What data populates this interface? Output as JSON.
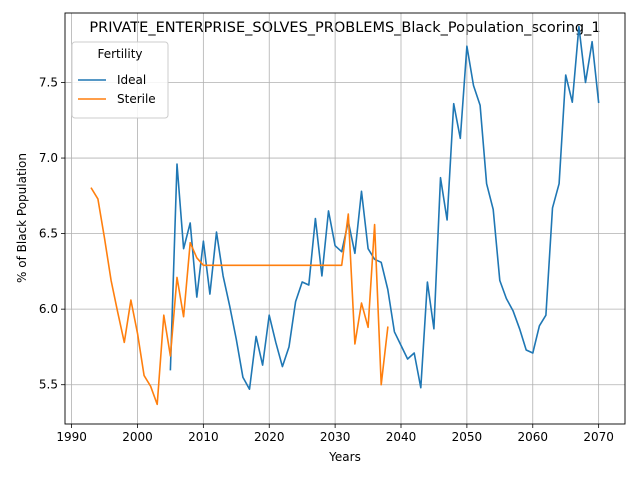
{
  "chart_data": {
    "type": "line",
    "title": "PRIVATE_ENTERPRISE_SOLVES_PROBLEMS_Black_Population_scoring_1",
    "xlabel": "Years",
    "ylabel": "% of Black Population",
    "xlim": [
      1989,
      2074
    ],
    "ylim": [
      5.24,
      7.96
    ],
    "xticks": [
      1990,
      2000,
      2010,
      2020,
      2030,
      2040,
      2050,
      2060,
      2070
    ],
    "yticks": [
      5.5,
      6.0,
      6.5,
      7.0,
      7.5
    ],
    "ytick_labels": [
      "5.5",
      "6.0",
      "6.5",
      "7.0",
      "7.5"
    ],
    "grid": true,
    "legend": {
      "title": "Fertility",
      "position": "top-left"
    },
    "series": [
      {
        "name": "Ideal",
        "color": "#1f77b4",
        "x": [
          2005,
          2006,
          2007,
          2008,
          2009,
          2010,
          2011,
          2012,
          2013,
          2014,
          2015,
          2016,
          2017,
          2018,
          2019,
          2020,
          2021,
          2022,
          2023,
          2024,
          2025,
          2026,
          2027,
          2028,
          2029,
          2030,
          2031,
          2032,
          2033,
          2034,
          2035,
          2036,
          2037,
          2038,
          2039,
          2040,
          2041,
          2042,
          2043,
          2044,
          2045,
          2046,
          2047,
          2048,
          2049,
          2050,
          2051,
          2052,
          2053,
          2054,
          2055,
          2056,
          2057,
          2058,
          2059,
          2060,
          2061,
          2062,
          2063,
          2064,
          2065,
          2066,
          2067,
          2068,
          2069,
          2070
        ],
        "values": [
          5.6,
          6.96,
          6.4,
          6.57,
          6.08,
          6.45,
          6.1,
          6.51,
          6.22,
          6.02,
          5.8,
          5.55,
          5.47,
          5.82,
          5.63,
          5.96,
          5.78,
          5.62,
          5.75,
          6.05,
          6.18,
          6.16,
          6.6,
          6.22,
          6.65,
          6.42,
          6.38,
          6.58,
          6.37,
          6.78,
          6.4,
          6.33,
          6.31,
          6.13,
          5.85,
          5.76,
          5.67,
          5.71,
          5.48,
          6.18,
          5.87,
          6.87,
          6.59,
          7.36,
          7.13,
          7.74,
          7.48,
          7.35,
          6.83,
          6.66,
          6.19,
          6.07,
          5.99,
          5.87,
          5.73,
          5.71,
          5.89,
          5.96,
          6.67,
          6.83,
          7.55,
          7.37,
          7.87,
          7.5,
          7.77,
          7.37
        ]
      },
      {
        "name": "Sterile",
        "color": "#ff7f0e",
        "x": [
          1993,
          1994,
          1995,
          1996,
          1997,
          1998,
          1999,
          2000,
          2001,
          2002,
          2003,
          2004,
          2005,
          2006,
          2007,
          2008,
          2009,
          2010,
          2011,
          2012,
          2013,
          2014,
          2015,
          2016,
          2017,
          2018,
          2019,
          2020,
          2021,
          2022,
          2023,
          2024,
          2025,
          2026,
          2027,
          2028,
          2029,
          2030,
          2031,
          2032,
          2033,
          2034,
          2035,
          2036,
          2037,
          2038
        ],
        "values": [
          6.8,
          6.73,
          6.47,
          6.19,
          5.98,
          5.78,
          6.06,
          5.84,
          5.56,
          5.49,
          5.37,
          5.96,
          5.69,
          6.21,
          5.95,
          6.44,
          6.34,
          6.29,
          6.29,
          6.29,
          6.29,
          6.29,
          6.29,
          6.29,
          6.29,
          6.29,
          6.29,
          6.29,
          6.29,
          6.29,
          6.29,
          6.29,
          6.29,
          6.29,
          6.29,
          6.29,
          6.29,
          6.29,
          6.29,
          6.63,
          5.77,
          6.04,
          5.88,
          6.56,
          5.5,
          5.88
        ]
      }
    ]
  }
}
